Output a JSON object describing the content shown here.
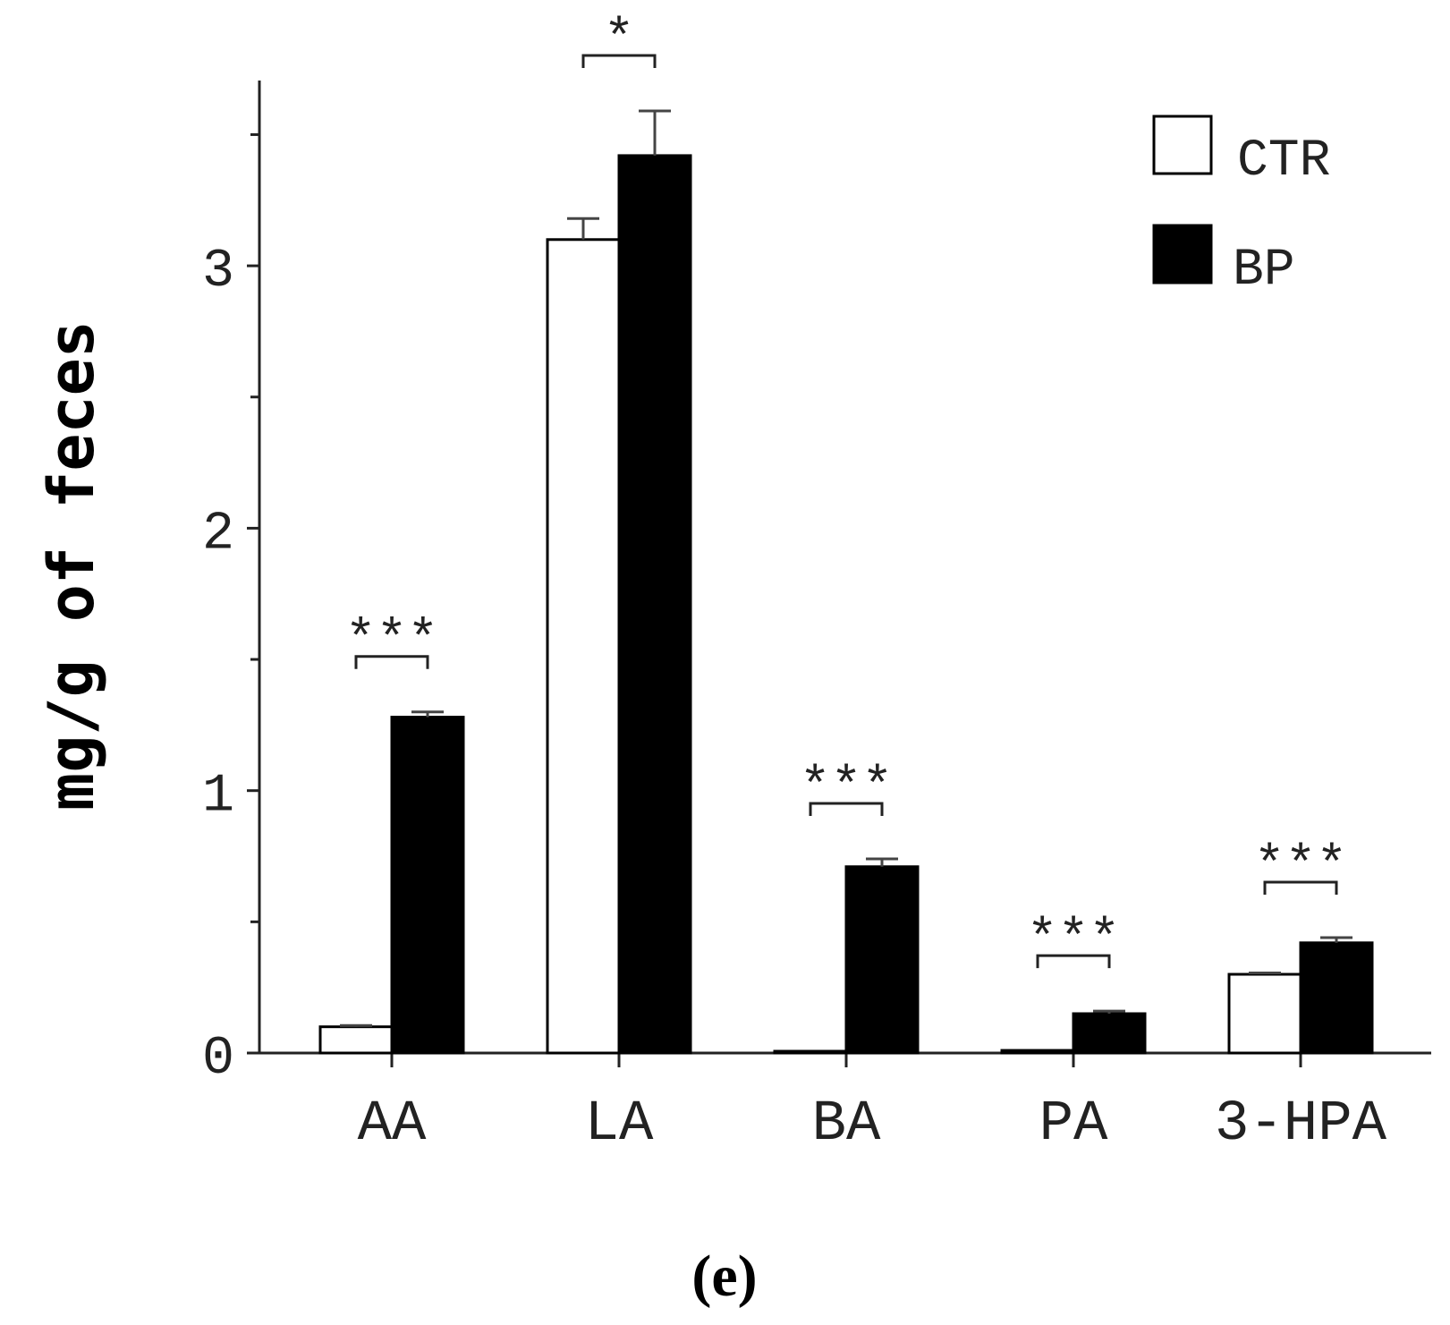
{
  "caption": "(e)",
  "chart_data": {
    "type": "bar",
    "title": "",
    "xlabel": "",
    "ylabel": "mg/g of feces",
    "ylim": [
      0,
      3.55
    ],
    "yticks": [
      0,
      1,
      2,
      3
    ],
    "minor_yticks": [
      0.5,
      1.5,
      2.5,
      3.5
    ],
    "grid": false,
    "legend_position": "top-right",
    "categories": [
      "AA",
      "LA",
      "BA",
      "PA",
      "3-HPA"
    ],
    "series": [
      {
        "name": "CTR",
        "color": "#ffffff",
        "values": [
          0.1,
          3.1,
          0.005,
          0.01,
          0.3
        ],
        "errors": [
          0.005,
          0.08,
          0.0,
          0.0,
          0.005
        ]
      },
      {
        "name": "BP",
        "color": "#000000",
        "values": [
          1.28,
          3.42,
          0.71,
          0.15,
          0.42
        ],
        "errors": [
          0.02,
          0.17,
          0.03,
          0.01,
          0.02
        ]
      }
    ],
    "significance": [
      {
        "category": "AA",
        "label": "***"
      },
      {
        "category": "LA",
        "label": "*"
      },
      {
        "category": "BA",
        "label": "***"
      },
      {
        "category": "PA",
        "label": "***"
      },
      {
        "category": "3-HPA",
        "label": "***"
      }
    ]
  }
}
